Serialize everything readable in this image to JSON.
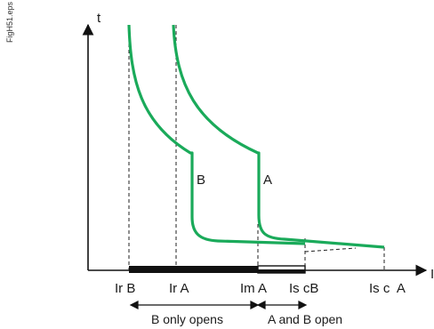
{
  "figure_id": "FigH51.eps",
  "axes": {
    "y_label": "t",
    "x_label": "I"
  },
  "curves": {
    "b_label": "B",
    "a_label": "A",
    "color": "#1aaa5a"
  },
  "ticks": [
    "Ir B",
    "Ir A",
    "Im A",
    "Is cB",
    "Is c  A"
  ],
  "ranges": {
    "b_only": "B only opens",
    "a_and_b": "A and B open"
  }
}
